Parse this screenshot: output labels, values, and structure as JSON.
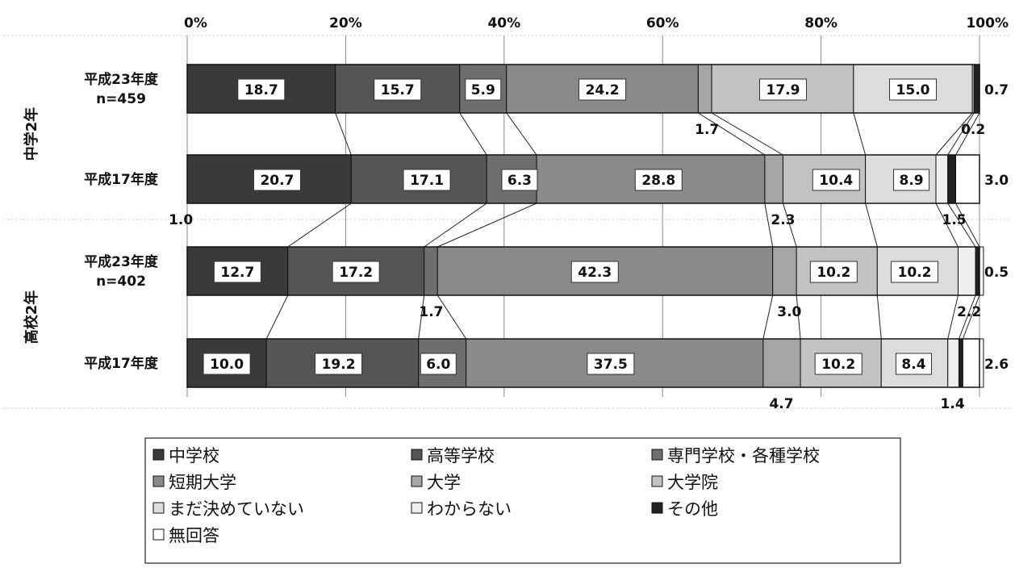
{
  "chart_data": {
    "type": "bar",
    "orientation": "horizontal",
    "stacked": "100%",
    "xlim": [
      0,
      100
    ],
    "ticks": [
      "0%",
      "20%",
      "40%",
      "60%",
      "80%",
      "100%"
    ],
    "groups": [
      {
        "label": "中学2年",
        "rows": [
          0,
          1
        ]
      },
      {
        "label": "高校2年",
        "rows": [
          2,
          3
        ]
      }
    ],
    "categories": [
      {
        "label": "平成23年度",
        "n": "n=459"
      },
      {
        "label": "平成17年度",
        "n": ""
      },
      {
        "label": "平成23年度",
        "n": "n=402"
      },
      {
        "label": "平成17年度",
        "n": ""
      }
    ],
    "series": [
      {
        "name": "中学校",
        "color": "#3a3a3a",
        "values": [
          18.7,
          20.7,
          12.7,
          10.0
        ]
      },
      {
        "name": "高等学校",
        "color": "#555555",
        "values": [
          15.7,
          17.1,
          17.2,
          19.2
        ]
      },
      {
        "name": "専門学校・各種学校",
        "color": "#6e6e6e",
        "values": [
          5.9,
          6.3,
          1.7,
          6.0
        ]
      },
      {
        "name": "短期大学",
        "color": "#8a8a8a",
        "values": [
          24.2,
          28.8,
          42.3,
          37.5
        ]
      },
      {
        "name": "大学",
        "color": "#a5a5a5",
        "values": [
          1.7,
          2.3,
          3.0,
          4.7
        ]
      },
      {
        "name": "大学院",
        "color": "#c2c2c2",
        "values": [
          17.9,
          10.4,
          10.2,
          10.2
        ]
      },
      {
        "name": "まだ決めていない",
        "color": "#dcdcdc",
        "values": [
          15.0,
          8.9,
          10.2,
          8.4
        ]
      },
      {
        "name": "わからない",
        "color": "#efefef",
        "values": [
          0.2,
          1.5,
          2.2,
          1.4
        ]
      },
      {
        "name": "その他",
        "color": "#222222",
        "values": [
          0.7,
          1.0,
          0.5,
          0.5
        ]
      },
      {
        "name": "無回答",
        "color": "#ffffff",
        "values": [
          0.0,
          3.0,
          0.5,
          2.6
        ]
      }
    ],
    "value_labels": [
      {
        "row": 0,
        "text": "18.7",
        "pos": 9.35,
        "place": "inside"
      },
      {
        "row": 0,
        "text": "15.7",
        "pos": 26.55,
        "place": "inside"
      },
      {
        "row": 0,
        "text": "5.9",
        "pos": 37.35,
        "place": "inside"
      },
      {
        "row": 0,
        "text": "24.2",
        "pos": 52.4,
        "place": "inside"
      },
      {
        "row": 0,
        "text": "17.9",
        "pos": 75.2,
        "place": "inside"
      },
      {
        "row": 0,
        "text": "15.0",
        "pos": 91.6,
        "place": "inside"
      },
      {
        "row": 0,
        "text": "0.7",
        "pos": 103.0,
        "place": "right"
      },
      {
        "row": 0,
        "text": "1.7",
        "pos": 65.6,
        "place": "below"
      },
      {
        "row": 0,
        "text": "0.2",
        "pos": 99.2,
        "place": "below"
      },
      {
        "row": 1,
        "text": "20.7",
        "pos": 11.35,
        "place": "inside"
      },
      {
        "row": 1,
        "text": "17.1",
        "pos": 30.25,
        "place": "inside"
      },
      {
        "row": 1,
        "text": "6.3",
        "pos": 41.95,
        "place": "inside"
      },
      {
        "row": 1,
        "text": "28.8",
        "pos": 59.5,
        "place": "inside"
      },
      {
        "row": 1,
        "text": "10.4",
        "pos": 81.9,
        "place": "inside"
      },
      {
        "row": 1,
        "text": "8.9",
        "pos": 91.4,
        "place": "inside"
      },
      {
        "row": 1,
        "text": "3.0",
        "pos": 103.0,
        "place": "right"
      },
      {
        "row": 1,
        "text": "1.0",
        "pos": -0.8,
        "place": "below"
      },
      {
        "row": 1,
        "text": "2.3",
        "pos": 75.2,
        "place": "below"
      },
      {
        "row": 1,
        "text": "1.5",
        "pos": 96.8,
        "place": "below"
      },
      {
        "row": 2,
        "text": "12.7",
        "pos": 6.35,
        "place": "inside"
      },
      {
        "row": 2,
        "text": "17.2",
        "pos": 21.3,
        "place": "inside"
      },
      {
        "row": 2,
        "text": "42.3",
        "pos": 51.45,
        "place": "inside"
      },
      {
        "row": 2,
        "text": "10.2",
        "pos": 81.6,
        "place": "inside"
      },
      {
        "row": 2,
        "text": "10.2",
        "pos": 91.8,
        "place": "inside"
      },
      {
        "row": 2,
        "text": "0.5",
        "pos": 103.0,
        "place": "right"
      },
      {
        "row": 2,
        "text": "1.7",
        "pos": 30.8,
        "place": "below"
      },
      {
        "row": 2,
        "text": "3.0",
        "pos": 76.0,
        "place": "below"
      },
      {
        "row": 2,
        "text": "2.2",
        "pos": 98.7,
        "place": "below"
      },
      {
        "row": 3,
        "text": "10.0",
        "pos": 5.0,
        "place": "inside"
      },
      {
        "row": 3,
        "text": "19.2",
        "pos": 19.1,
        "place": "inside"
      },
      {
        "row": 3,
        "text": "6.0",
        "pos": 31.7,
        "place": "inside"
      },
      {
        "row": 3,
        "text": "37.5",
        "pos": 53.45,
        "place": "inside"
      },
      {
        "row": 3,
        "text": "10.2",
        "pos": 82.2,
        "place": "inside"
      },
      {
        "row": 3,
        "text": "8.4",
        "pos": 91.7,
        "place": "inside"
      },
      {
        "row": 3,
        "text": "2.6",
        "pos": 103.0,
        "place": "right"
      },
      {
        "row": 3,
        "text": "4.7",
        "pos": 75.0,
        "place": "below"
      },
      {
        "row": 3,
        "text": "1.4",
        "pos": 96.6,
        "place": "below"
      }
    ],
    "grid": true,
    "legend_position": "bottom"
  }
}
